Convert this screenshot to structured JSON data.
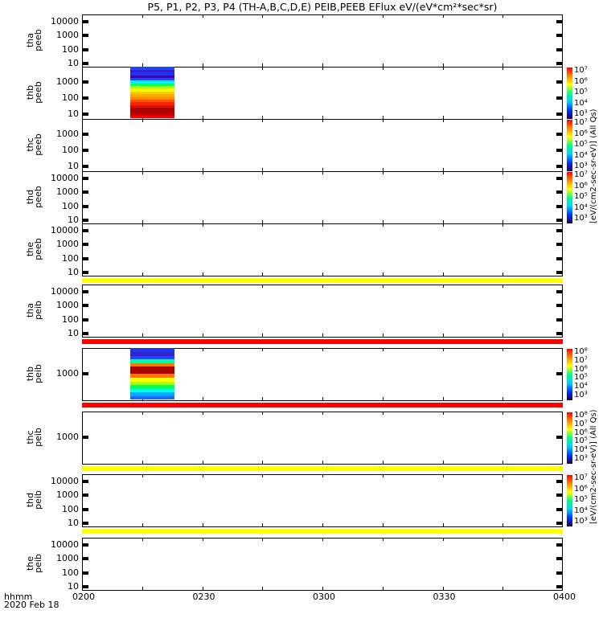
{
  "chart_data": {
    "type": "heatmap",
    "title": "P5, P1, P2, P3, P4 (TH-A,B,C,D,E) PEIB,PEEB EFlux eV/(eV*cm²*sec*sr)",
    "xlabel": "hhmm",
    "date": "2020 Feb 18",
    "xticks": [
      "0200",
      "0230",
      "0300",
      "0330",
      "0400"
    ],
    "xlim_minutes": [
      0,
      120
    ],
    "colorbar_label": "[eV/(cm2-sec-sr-eV)] (All Qs)",
    "panels": [
      {
        "name": "tha",
        "type": "peeb",
        "yticks": [
          "10000",
          "1000",
          "100",
          "10"
        ],
        "ylim_log": [
          0.83,
          4.5
        ],
        "band_after": null
      },
      {
        "name": "thb",
        "type": "peeb",
        "yticks": [
          "1000",
          "100",
          "10"
        ],
        "ylim_log": [
          0.75,
          3.95
        ],
        "data_minutes": [
          12,
          23
        ],
        "colorbar": [
          "10⁷",
          "10⁶",
          "10⁵",
          "10⁴",
          "10³"
        ],
        "spectrum": [
          "#ff0000",
          "#cc0000",
          "#aa0000",
          "#aa0000",
          "#dd1100",
          "#ff2200",
          "#ff5500",
          "#ff8800",
          "#ffaa00",
          "#ffcc00",
          "#eeff00",
          "#aaff00",
          "#00ff66",
          "#00eeff",
          "#2244ff",
          "#4400aa",
          "#2233ee",
          "#3322cc",
          "#2244ff"
        ]
      },
      {
        "name": "thc",
        "type": "peeb",
        "yticks": [
          "1000",
          "100",
          "10"
        ],
        "ylim_log": [
          0.75,
          3.95
        ],
        "colorbar": [
          "10⁷",
          "10⁶",
          "10⁵",
          "10⁴",
          "10³"
        ]
      },
      {
        "name": "thd",
        "type": "peeb",
        "yticks": [
          "10000",
          "1000",
          "100",
          "10"
        ],
        "ylim_log": [
          0.83,
          4.5
        ],
        "colorbar": [
          "10⁷",
          "10⁶",
          "10⁵",
          "10⁴",
          "10³"
        ]
      },
      {
        "name": "the",
        "type": "peeb",
        "yticks": [
          "10000",
          "1000",
          "100",
          "10"
        ],
        "ylim_log": [
          0.83,
          4.5
        ],
        "band_after": "#ffff00"
      },
      {
        "name": "tha",
        "type": "peib",
        "yticks": [
          "10000",
          "1000",
          "100",
          "10"
        ],
        "ylim_log": [
          0.83,
          4.5
        ],
        "band_after": "#ff0000"
      },
      {
        "name": "thb",
        "type": "peib",
        "yticks": [
          "1000"
        ],
        "ylim_log": [
          2.2,
          3.8
        ],
        "band_after": "#ff0000",
        "data_minutes": [
          12,
          23
        ],
        "colorbar": [
          "10⁸",
          "10⁷",
          "10⁶",
          "10⁵",
          "10⁴",
          "10³"
        ],
        "spectrum": [
          "#2266ff",
          "#00aaff",
          "#00ffee",
          "#00ff66",
          "#aaff00",
          "#ffff00",
          "#ff7700",
          "#aa0000",
          "#aa0000",
          "#ff7700",
          "#00ff99",
          "#2244ff",
          "#3322cc",
          "#2233ee"
        ]
      },
      {
        "name": "thc",
        "type": "peib",
        "yticks": [
          "1000"
        ],
        "ylim_log": [
          2.2,
          3.8
        ],
        "band_after": "#ffff00",
        "colorbar": [
          "10⁸",
          "10⁷",
          "10⁶",
          "10⁵",
          "10⁴",
          "10³"
        ]
      },
      {
        "name": "thd",
        "type": "peib",
        "yticks": [
          "10000",
          "1000",
          "100",
          "10"
        ],
        "ylim_log": [
          0.83,
          4.5
        ],
        "band_after": "#ffff00",
        "colorbar": [
          "10⁷",
          "10⁶",
          "10⁵",
          "10⁴",
          "10³"
        ]
      },
      {
        "name": "the",
        "type": "peib",
        "yticks": [
          "10000",
          "1000",
          "100",
          "10"
        ],
        "ylim_log": [
          0.83,
          4.5
        ]
      }
    ]
  }
}
